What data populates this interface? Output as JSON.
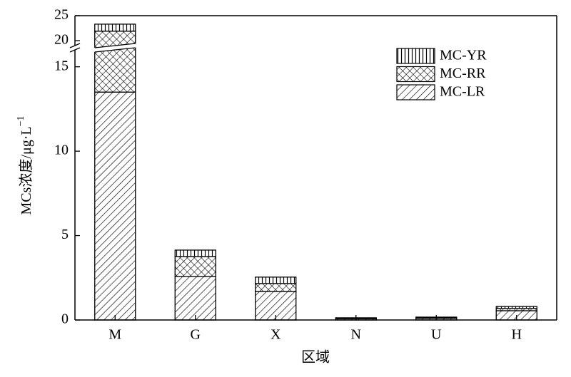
{
  "chart_data": {
    "type": "stacked_bar",
    "ylabel": {
      "text": "MCs浓度/μg·L",
      "superscript": "−1"
    },
    "xlabel": "区域",
    "categories": [
      "M",
      "G",
      "X",
      "N",
      "U",
      "H"
    ],
    "series": [
      {
        "name": "MC-LR",
        "pattern": "diagonal",
        "values": [
          13.5,
          2.58,
          1.69,
          0.08,
          0.1,
          0.55
        ]
      },
      {
        "name": "MC-RR",
        "pattern": "crosshatch",
        "values": [
          8.4,
          1.18,
          0.47,
          0.03,
          0.04,
          0.13
        ]
      },
      {
        "name": "MC-YR",
        "pattern": "vertical",
        "values": [
          1.4,
          0.38,
          0.38,
          0.02,
          0.03,
          0.12
        ]
      }
    ],
    "ylim": [
      0,
      25
    ],
    "axis_break": [
      16,
      19
    ],
    "yticks": [
      0,
      5,
      10,
      15,
      20,
      25
    ],
    "legend": "upper right"
  }
}
